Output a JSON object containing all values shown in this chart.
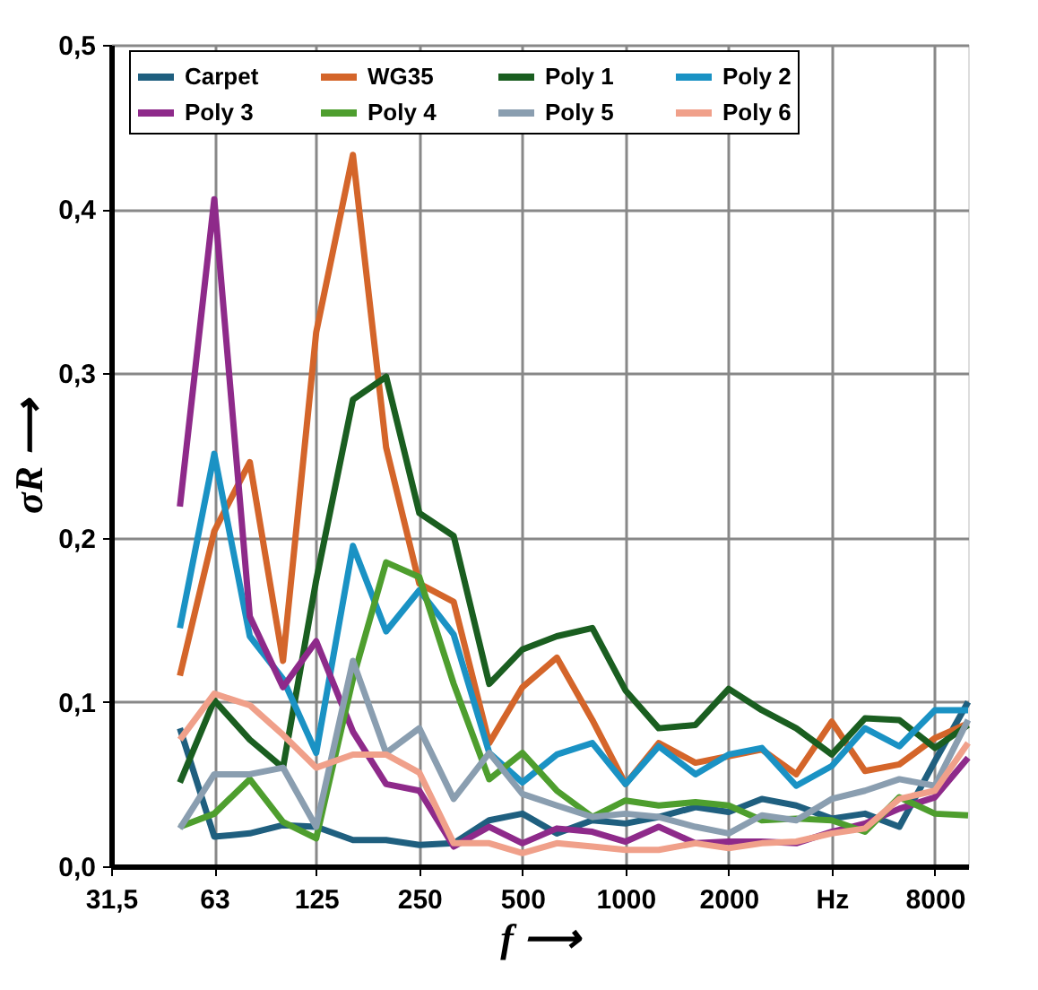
{
  "chart_data": {
    "type": "line",
    "xlabel": "f ⟶",
    "ylabel": "σR ⟶",
    "log": "x",
    "x": [
      50,
      63,
      80,
      100,
      125,
      160,
      200,
      250,
      315,
      400,
      500,
      630,
      800,
      1000,
      1250,
      1600,
      2000,
      2500,
      3150,
      4000,
      5000,
      6300,
      8000,
      10000
    ],
    "xlim": [
      31.5,
      10000
    ],
    "xticks": [
      {
        "value": 31.5,
        "label": "31,5"
      },
      63,
      125,
      250,
      500,
      1000,
      2000,
      {
        "value": 4000,
        "label": "Hz"
      },
      8000
    ],
    "ylim": [
      0,
      0.5
    ],
    "yticks": [
      {
        "value": 0,
        "label": "0,0"
      },
      {
        "value": 0.1,
        "label": "0,1"
      },
      {
        "value": 0.2,
        "label": "0,2"
      },
      {
        "value": 0.3,
        "label": "0,3"
      },
      {
        "value": 0.4,
        "label": "0,4"
      },
      {
        "value": 0.5,
        "label": "0,5"
      }
    ],
    "grid": true,
    "legend": "top",
    "line_style": "solid",
    "marker": "none",
    "series": [
      {
        "name": "Carpet",
        "color": "#1f5f7f",
        "values": [
          0.084,
          0.018,
          0.02,
          0.025,
          0.024,
          0.016,
          0.016,
          0.013,
          0.014,
          0.028,
          0.032,
          0.02,
          0.028,
          0.026,
          0.03,
          0.036,
          0.033,
          0.041,
          0.037,
          0.029,
          0.032,
          0.024,
          0.064,
          0.1
        ]
      },
      {
        "name": "WG35",
        "color": "#d4652a",
        "values": [
          0.116,
          0.204,
          0.246,
          0.125,
          0.325,
          0.433,
          0.255,
          0.172,
          0.161,
          0.075,
          0.109,
          0.127,
          0.089,
          0.05,
          0.075,
          0.063,
          0.067,
          0.071,
          0.056,
          0.088,
          0.058,
          0.062,
          0.078,
          0.087
        ]
      },
      {
        "name": "Poly 1",
        "color": "#1a5e20",
        "values": [
          0.051,
          0.101,
          0.077,
          0.06,
          0.174,
          0.284,
          0.298,
          0.215,
          0.201,
          0.111,
          0.132,
          0.14,
          0.145,
          0.107,
          0.084,
          0.086,
          0.108,
          0.095,
          0.084,
          0.068,
          0.09,
          0.089,
          0.072,
          0.086
        ]
      },
      {
        "name": "Poly 2",
        "color": "#1a92c4",
        "values": [
          0.145,
          0.251,
          0.14,
          0.114,
          0.069,
          0.195,
          0.143,
          0.168,
          0.141,
          0.069,
          0.051,
          0.068,
          0.075,
          0.05,
          0.073,
          0.056,
          0.068,
          0.072,
          0.049,
          0.061,
          0.084,
          0.073,
          0.095,
          0.095
        ]
      },
      {
        "name": "Poly 3",
        "color": "#8e2a8a",
        "values": [
          0.219,
          0.406,
          0.152,
          0.109,
          0.137,
          0.082,
          0.05,
          0.046,
          0.012,
          0.024,
          0.014,
          0.023,
          0.021,
          0.015,
          0.024,
          0.014,
          0.015,
          0.015,
          0.014,
          0.021,
          0.026,
          0.035,
          0.042,
          0.066
        ]
      },
      {
        "name": "Poly 4",
        "color": "#4e9e2e",
        "values": [
          0.024,
          0.032,
          0.053,
          0.027,
          0.017,
          0.114,
          0.185,
          0.176,
          0.111,
          0.053,
          0.069,
          0.046,
          0.03,
          0.04,
          0.037,
          0.039,
          0.037,
          0.028,
          0.029,
          0.028,
          0.021,
          0.042,
          0.032,
          0.031
        ]
      },
      {
        "name": "Poly 5",
        "color": "#8a9eb0",
        "values": [
          0.023,
          0.056,
          0.056,
          0.06,
          0.024,
          0.125,
          0.069,
          0.084,
          0.041,
          0.069,
          0.044,
          0.037,
          0.03,
          0.032,
          0.03,
          0.024,
          0.02,
          0.031,
          0.028,
          0.041,
          0.046,
          0.053,
          0.049,
          0.089
        ]
      },
      {
        "name": "Poly 6",
        "color": "#f0a08a",
        "values": [
          0.077,
          0.105,
          0.098,
          0.08,
          0.06,
          0.068,
          0.068,
          0.057,
          0.014,
          0.014,
          0.008,
          0.014,
          0.012,
          0.01,
          0.01,
          0.014,
          0.011,
          0.014,
          0.015,
          0.02,
          0.023,
          0.041,
          0.046,
          0.075
        ]
      }
    ]
  }
}
